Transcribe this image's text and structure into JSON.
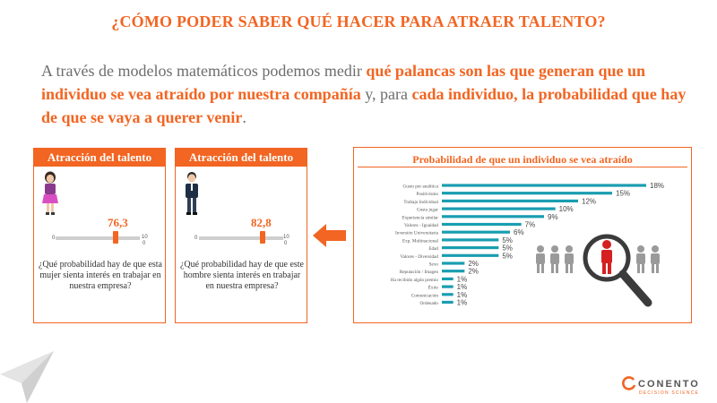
{
  "title": "¿CÓMO PODER SABER QUÉ HACER PARA ATRAER TALENTO?",
  "intro": {
    "p1": "A través de modelos matemáticos podemos medir ",
    "h1": "qué palancas son las que generan que un individuo se vea atraído por nuestra compañía",
    "p2": " y, para ",
    "h2": "cada individuo, la probabilidad que hay de que se vaya a querer venir",
    "p3": "."
  },
  "cards": [
    {
      "header": "Atracción del talento",
      "figure": "woman-icon",
      "score": "76,3",
      "score_value": 76.3,
      "min": "0",
      "max": "10",
      "max_sub": "0",
      "question": "¿Qué probabilidad hay de que esta mujer sienta interés en trabajar en nuestra empresa?"
    },
    {
      "header": "Atracción del talento",
      "figure": "man-icon",
      "score": "82,8",
      "score_value": 82.8,
      "min": "0",
      "max": "10",
      "max_sub": "0",
      "question": "¿Qué probabilidad hay de que este hombre sienta interés en trabajar en nuestra empresa?"
    }
  ],
  "arrow_icon": "arrow-left-icon",
  "chart_data": {
    "type": "bar",
    "orientation": "horizontal",
    "title": "Probabilidad de que un individuo se vea atraído",
    "categories": [
      "Gusto por analítica",
      "Positivismo",
      "Trabajo Individual",
      "Gusta jugar",
      "Experiencia similar",
      "Valores - Igualdad",
      "Inversión Universitaria",
      "Exp. Multinacional",
      "Edad",
      "Valores - Diversidad",
      "Sexo",
      "Reputación / Imagen",
      "Ha recibido algún premio",
      "Éxito",
      "Comunicación",
      "Ordenado"
    ],
    "values": [
      18,
      15,
      12,
      10,
      9,
      7,
      6,
      5,
      5,
      5,
      2,
      2,
      1,
      1,
      1,
      1
    ],
    "value_labels": [
      "18%",
      "15%",
      "12%",
      "10%",
      "9%",
      "7%",
      "6%",
      "5%",
      "5%",
      "5%",
      "2%",
      "2%",
      "1%",
      "1%",
      "1%",
      "1%"
    ],
    "xlim": [
      0,
      18
    ],
    "bar_color": "#1a9db0"
  },
  "illustration": "people-magnifier-icon",
  "brand": {
    "name": "CONENTO",
    "tagline": "DECISION SCIENCE",
    "accent": "#f26522"
  }
}
